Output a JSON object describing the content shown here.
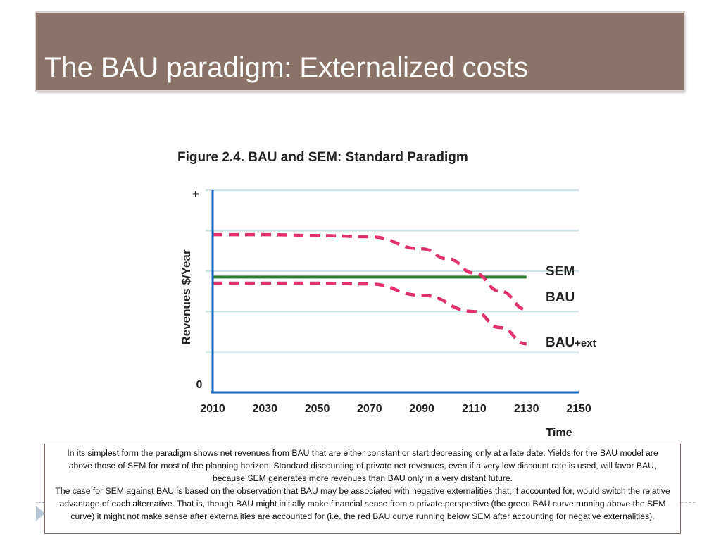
{
  "slide": {
    "title": "The BAU paradigm: Externalized costs"
  },
  "caption": {
    "paragraph1": "In its simplest form the paradigm shows net revenues from BAU that are either constant or start decreasing only at a late date. Yields for the BAU model are above those of SEM for most of the planning horizon. Standard discounting of private net revenues, even if a very low discount rate is used, will favor BAU, because SEM generates more revenues than BAU only in a very distant future.",
    "paragraph2": "The case for SEM against BAU is based on the observation that BAU may be associated with negative externalities that, if accounted for, would switch the relative advantage of each alternative. That is, though BAU might initially make financial sense from a private perspective (the green BAU curve running above the SEM curve) it might not make sense after externalities are accounted for (i.e. the red BAU curve running below SEM after accounting for negative externalities)."
  },
  "colors": {
    "title_bar": "#8c736a",
    "sem_line": "#2e7d32",
    "bau_lines": "#e0326e",
    "axis": "#1565c0",
    "grid": "#cfe3e6"
  },
  "chart_data": {
    "type": "line",
    "title": "Figure 2.4. BAU and SEM: Standard Paradigm",
    "xlabel": "Time",
    "ylabel": "Revenues $/Year",
    "y_top_label": "+",
    "y_zero_label": "0",
    "x_ticks": [
      "2010",
      "2030",
      "2050",
      "2070",
      "2090",
      "2110",
      "2130",
      "2150"
    ],
    "xlim": [
      2010,
      2150
    ],
    "ylim": [
      0,
      5
    ],
    "grid": true,
    "series": [
      {
        "name": "SEM",
        "style": "solid",
        "x": [
          2010,
          2130
        ],
        "y": [
          2.85,
          2.85
        ]
      },
      {
        "name": "BAU",
        "style": "dashed",
        "x": [
          2010,
          2030,
          2050,
          2070,
          2090,
          2100,
          2110,
          2120,
          2130
        ],
        "y": [
          3.9,
          3.9,
          3.88,
          3.85,
          3.55,
          3.3,
          2.95,
          2.5,
          2.05
        ]
      },
      {
        "name": "BAU+ext",
        "name_main": "BAU",
        "name_sub": "+ext",
        "style": "dashed",
        "x": [
          2010,
          2030,
          2050,
          2070,
          2090,
          2110,
          2120,
          2130
        ],
        "y": [
          2.7,
          2.7,
          2.7,
          2.68,
          2.4,
          2.0,
          1.6,
          1.2
        ]
      }
    ]
  }
}
